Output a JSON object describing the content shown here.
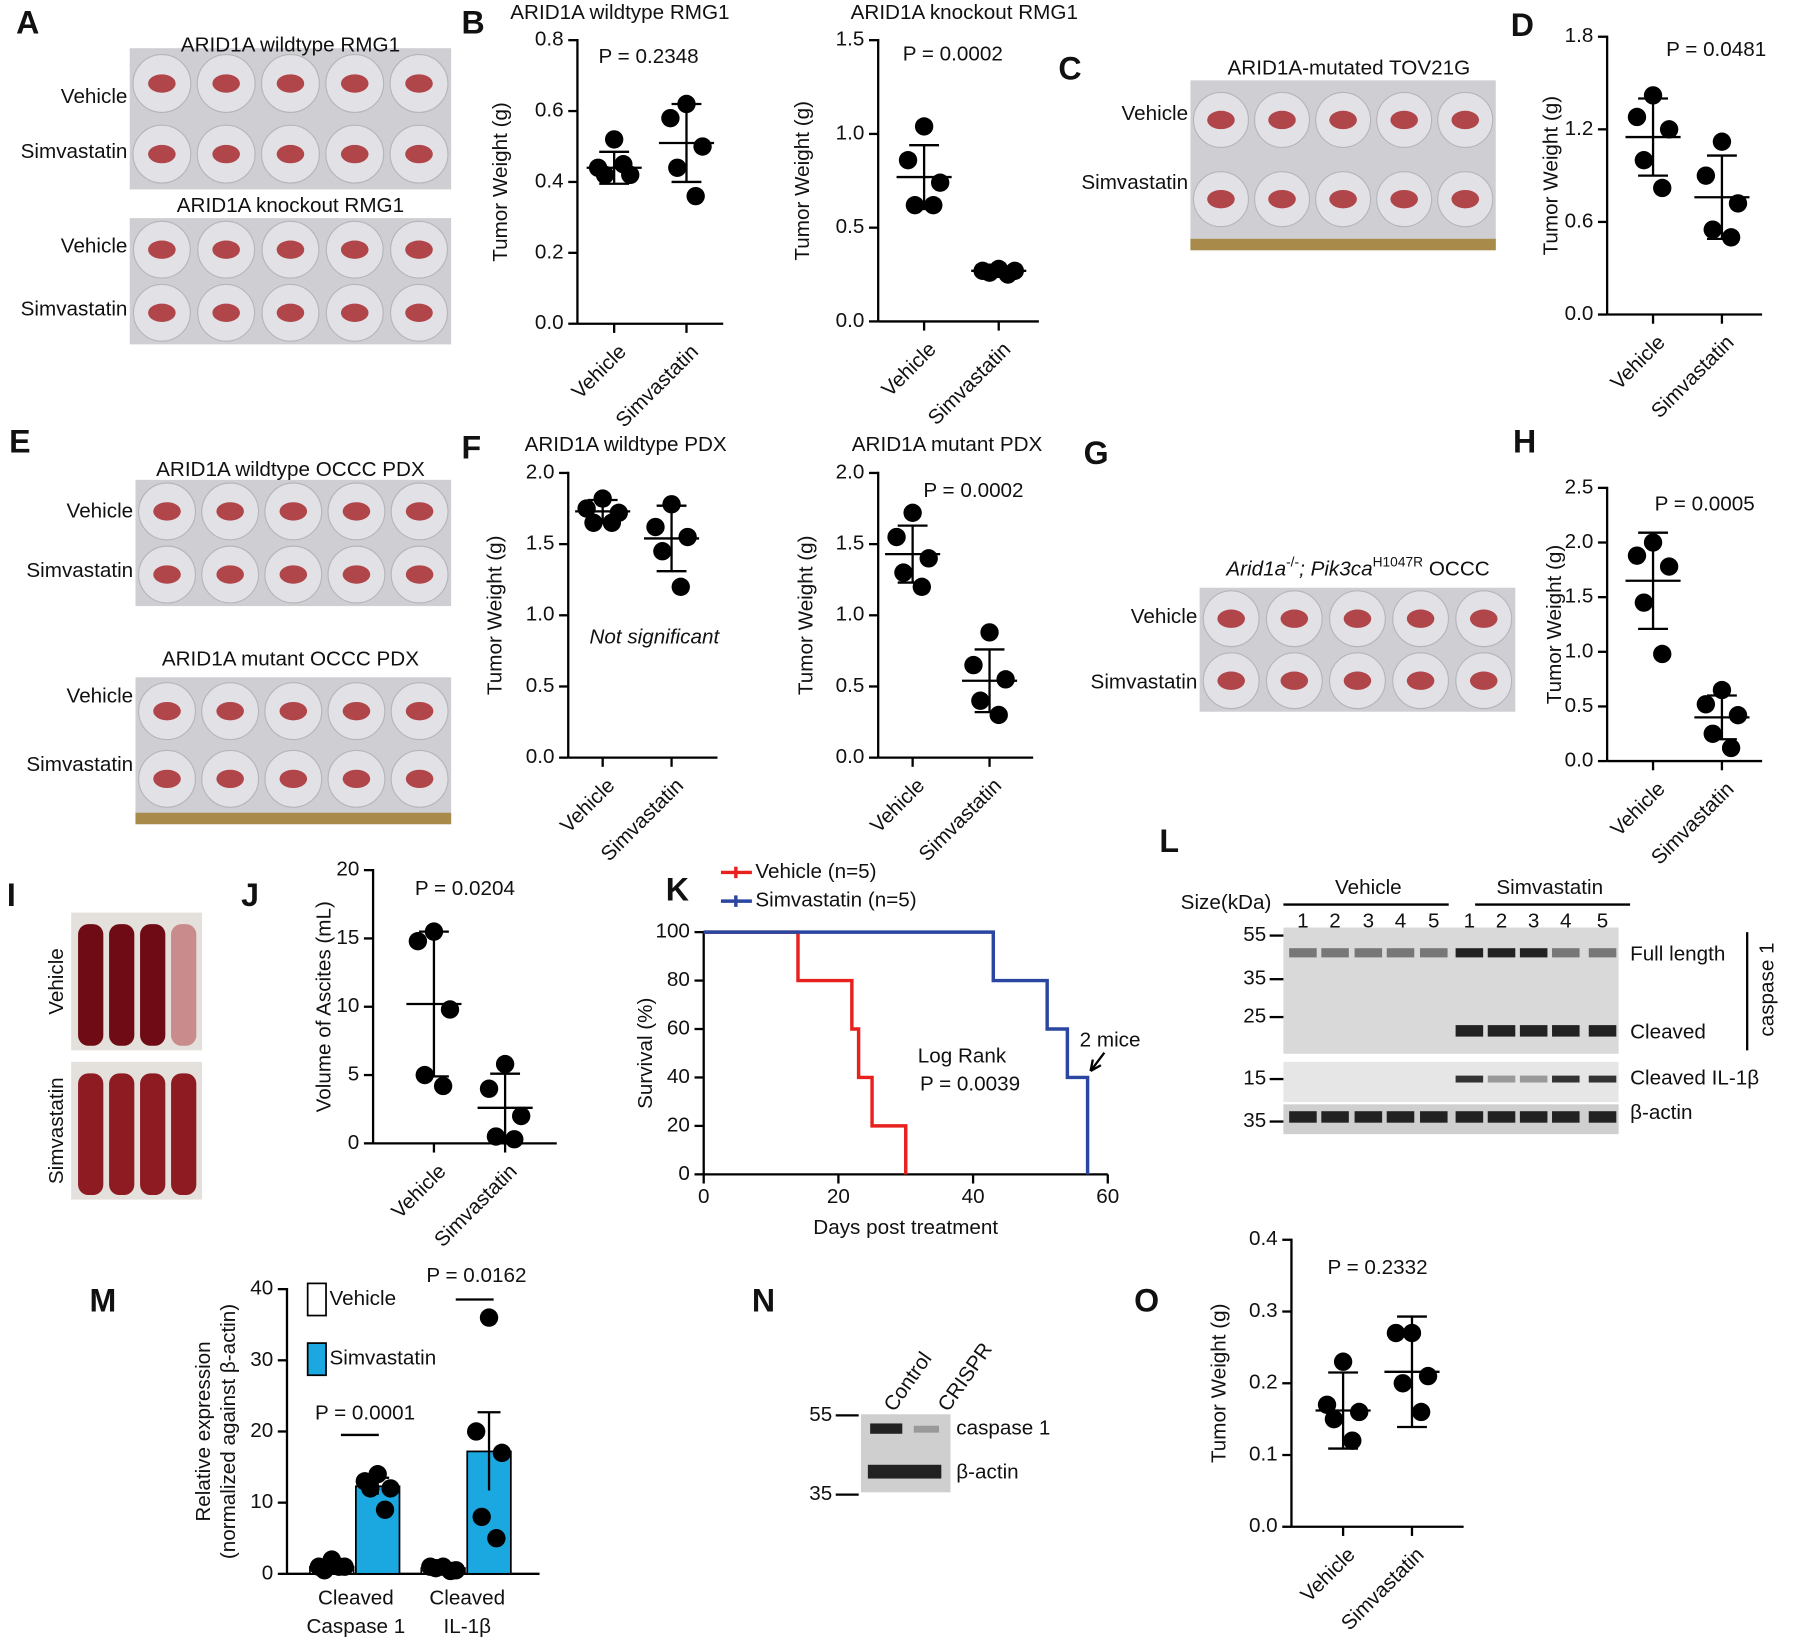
{
  "images": [
    {
      "panel": "A",
      "sections": [
        {
          "title": "ARID1A wildtype RMG1",
          "rows": [
            "Vehicle",
            "Simvastatin"
          ]
        },
        {
          "title": "ARID1A knockout RMG1",
          "rows": [
            "Vehicle",
            "Simvastatin"
          ]
        }
      ]
    },
    {
      "panel": "C",
      "sections": [
        {
          "title": "ARID1A-mutated TOV21G",
          "rows": [
            "Vehicle",
            "Simvastatin"
          ]
        }
      ]
    },
    {
      "panel": "E",
      "sections": [
        {
          "title": "ARID1A wildtype OCCC PDX",
          "rows": [
            "Vehicle",
            "Simvastatin"
          ]
        },
        {
          "title": "ARID1A mutant OCCC PDX",
          "rows": [
            "Vehicle",
            "Simvastatin"
          ]
        }
      ]
    },
    {
      "panel": "G",
      "sections": [
        {
          "title_parts": [
            "Arid1a",
            "-/-",
            "; Pik3ca",
            "H1047R",
            " OCCC"
          ],
          "rows": [
            "Vehicle",
            "Simvastatin"
          ]
        }
      ]
    },
    {
      "panel": "I",
      "sections": [
        {
          "rows": [
            "Vehicle"
          ]
        },
        {
          "rows": [
            "Simvastatin"
          ]
        }
      ]
    }
  ],
  "blots": [
    {
      "panel": "L",
      "size_label": "Size(kDa)",
      "groups": [
        "Vehicle",
        "Simvastatin"
      ],
      "lanes": [
        "1",
        "2",
        "3",
        "4",
        "5",
        "1",
        "2",
        "3",
        "4",
        "5"
      ],
      "markers": [
        55,
        35,
        25,
        15,
        35
      ],
      "labels": [
        "Full length",
        "Cleaved",
        "Cleaved IL-1β",
        "β-actin"
      ],
      "bracket_label": "caspase 1"
    },
    {
      "panel": "N",
      "lanes": [
        "Control",
        "CRISPR"
      ],
      "markers": [
        55,
        35
      ],
      "labels": [
        "caspase 1",
        "β-actin"
      ]
    }
  ],
  "chart_data": [
    {
      "type": "dotplot",
      "panel": "B",
      "title": "ARID1A wildtype RMG1",
      "y_label": "Tumor Weight (g)",
      "ylim": [
        0,
        0.8
      ],
      "yticks": [
        {
          "value": 0,
          "label": "0.0"
        },
        0.2,
        0.4,
        0.6,
        0.8
      ],
      "series": [
        {
          "name": "Vehicle",
          "points": [
            0.52,
            0.44,
            0.42,
            0.42,
            0.45
          ],
          "mean": 0.44,
          "sd": 0.045
        },
        {
          "name": "Simvastatin",
          "points": [
            0.62,
            0.58,
            0.5,
            0.44,
            0.36
          ],
          "mean": 0.51,
          "sd": 0.11
        }
      ],
      "annotations": [
        "P = 0.2348"
      ]
    },
    {
      "type": "dotplot",
      "title": "ARID1A knockout RMG1",
      "y_label": "Tumor Weight (g)",
      "ylim": [
        0,
        1.5
      ],
      "yticks": [
        {
          "value": 0,
          "label": "0.0"
        },
        0.5,
        {
          "value": 1,
          "label": "1.0"
        },
        1.5
      ],
      "series": [
        {
          "name": "Vehicle",
          "points": [
            1.04,
            0.86,
            0.74,
            0.62,
            0.62
          ],
          "mean": 0.77,
          "sd": 0.17
        },
        {
          "name": "Simvastatin",
          "points": [
            0.28,
            0.27,
            0.27,
            0.26,
            0.25
          ],
          "mean": 0.27,
          "sd": 0.01
        }
      ],
      "annotations": [
        "P = 0.0002"
      ]
    },
    {
      "type": "dotplot",
      "panel": "D",
      "y_label": "Tumor Weight (g)",
      "ylim": [
        0,
        1.8
      ],
      "yticks": [
        {
          "value": 0,
          "label": "0.0"
        },
        0.6,
        1.2,
        1.8
      ],
      "series": [
        {
          "name": "Vehicle",
          "points": [
            1.42,
            1.28,
            1.2,
            1.0,
            0.82
          ],
          "mean": 1.15,
          "sd": 0.25
        },
        {
          "name": "Simvastatin",
          "points": [
            1.12,
            0.9,
            0.72,
            0.55,
            0.5
          ],
          "mean": 0.76,
          "sd": 0.27
        }
      ],
      "annotations": [
        "P = 0.0481"
      ]
    },
    {
      "type": "dotplot",
      "panel": "F",
      "title": "ARID1A wildtype PDX",
      "y_label": "Tumor Weight (g)",
      "ylim": [
        0,
        2
      ],
      "yticks": [
        {
          "value": 0,
          "label": "0.0"
        },
        0.5,
        {
          "value": 1,
          "label": "1.0"
        },
        1.5,
        {
          "value": 2,
          "label": "2.0"
        }
      ],
      "series": [
        {
          "name": "Vehicle",
          "points": [
            1.82,
            1.75,
            1.72,
            1.65,
            1.65
          ],
          "mean": 1.73,
          "sd": 0.08
        },
        {
          "name": "Simvastatin",
          "points": [
            1.78,
            1.62,
            1.55,
            1.45,
            1.2
          ],
          "mean": 1.54,
          "sd": 0.23
        }
      ],
      "annotations": [
        "Not significant"
      ]
    },
    {
      "type": "dotplot",
      "title": "ARID1A mutant PDX",
      "y_label": "Tumor Weight (g)",
      "ylim": [
        0,
        2
      ],
      "yticks": [
        {
          "value": 0,
          "label": "0.0"
        },
        0.5,
        {
          "value": 1,
          "label": "1.0"
        },
        1.5,
        {
          "value": 2,
          "label": "2.0"
        }
      ],
      "series": [
        {
          "name": "Vehicle",
          "points": [
            1.72,
            1.55,
            1.4,
            1.3,
            1.2
          ],
          "mean": 1.43,
          "sd": 0.2
        },
        {
          "name": "Simvastatin",
          "points": [
            0.88,
            0.65,
            0.55,
            0.4,
            0.3
          ],
          "mean": 0.54,
          "sd": 0.22
        }
      ],
      "annotations": [
        "P = 0.0002"
      ]
    },
    {
      "type": "dotplot",
      "panel": "H",
      "y_label": "Tumor Weight (g)",
      "ylim": [
        0,
        2.5
      ],
      "yticks": [
        {
          "value": 0,
          "label": "0.0"
        },
        0.5,
        {
          "value": 1,
          "label": "1.0"
        },
        1.5,
        {
          "value": 2,
          "label": "2.0"
        },
        2.5
      ],
      "series": [
        {
          "name": "Vehicle",
          "points": [
            2.0,
            1.88,
            1.78,
            1.45,
            0.98
          ],
          "mean": 1.65,
          "sd": 0.44
        },
        {
          "name": "Simvastatin",
          "points": [
            0.65,
            0.52,
            0.42,
            0.25,
            0.12
          ],
          "mean": 0.4,
          "sd": 0.2
        }
      ],
      "annotations": [
        "P = 0.0005"
      ]
    },
    {
      "type": "dotplot",
      "panel": "J",
      "y_label": "Volume of Ascites (mL)",
      "ylim": [
        0,
        20
      ],
      "yticks": [
        0,
        5,
        10,
        15,
        20
      ],
      "series": [
        {
          "name": "Vehicle",
          "points": [
            15.5,
            14.8,
            9.8,
            5,
            4.2
          ],
          "mean": 10.2,
          "sd": 5.3
        },
        {
          "name": "Simvastatin",
          "points": [
            5.8,
            4,
            2,
            0.5,
            0.3
          ],
          "mean": 2.6,
          "sd": 2.5
        }
      ],
      "annotations": [
        "P = 0.0204"
      ]
    },
    {
      "type": "survival",
      "panel": "K",
      "x_label": "Days post treatment",
      "y_label": "Survival (%)",
      "xlim": [
        0,
        60
      ],
      "xticks": [
        0,
        20,
        40,
        60
      ],
      "ylim": [
        0,
        100
      ],
      "yticks": [
        0,
        20,
        40,
        60,
        80,
        100
      ],
      "series": [
        {
          "name": "Vehicle (n=5)",
          "color": "#e8211f",
          "x": [
            0,
            14,
            22,
            23,
            25,
            30
          ],
          "values": [
            100,
            80,
            60,
            40,
            20,
            0
          ]
        },
        {
          "name": "Simvastatin (n=5)",
          "color": "#2b46a0",
          "x": [
            0,
            43,
            51,
            54,
            57
          ],
          "values": [
            100,
            80,
            60,
            40,
            0
          ]
        }
      ],
      "annotations": [
        "Log Rank",
        "P = 0.0039",
        "2 mice"
      ]
    },
    {
      "type": "bar",
      "panel": "M",
      "y_label": [
        "Relative expression",
        "(normalized against β-actin)"
      ],
      "ylim": [
        0,
        40
      ],
      "yticks": [
        0,
        10,
        20,
        30,
        40
      ],
      "categories": [
        [
          "Cleaved",
          "Caspase 1"
        ],
        [
          "Cleaved",
          "IL-1β"
        ]
      ],
      "series": [
        {
          "name": "Vehicle",
          "color": "#ffffff",
          "values": [
            1,
            0.8
          ],
          "errors": [
            0.3,
            0.2
          ],
          "points": [
            [
              2,
              1,
              1,
              0.5,
              1
            ],
            [
              1,
              1,
              0.5,
              0.8,
              0.4
            ]
          ]
        },
        {
          "name": "Simvastatin",
          "color": "#1ba7e0",
          "values": [
            12.3,
            17.2
          ],
          "errors": [
            1.2,
            5.5
          ],
          "points": [
            [
              14,
              13,
              12,
              12,
              9
            ],
            [
              36,
              20,
              17,
              8,
              5
            ]
          ]
        }
      ],
      "annotations": [
        "P = 0.0001",
        "P = 0.0162"
      ]
    },
    {
      "type": "dotplot",
      "panel": "O",
      "y_label": "Tumor Weight (g)",
      "ylim": [
        0,
        0.4
      ],
      "yticks": [
        {
          "value": 0,
          "label": "0.0"
        },
        0.1,
        0.2,
        0.3,
        0.4
      ],
      "series": [
        {
          "name": "Vehicle",
          "points": [
            0.23,
            0.17,
            0.16,
            0.15,
            0.12
          ],
          "mean": 0.162,
          "sd": 0.053
        },
        {
          "name": "Simvastatin",
          "points": [
            0.27,
            0.27,
            0.21,
            0.2,
            0.16
          ],
          "mean": 0.216,
          "sd": 0.077
        }
      ],
      "annotations": [
        "P = 0.2332"
      ]
    }
  ]
}
